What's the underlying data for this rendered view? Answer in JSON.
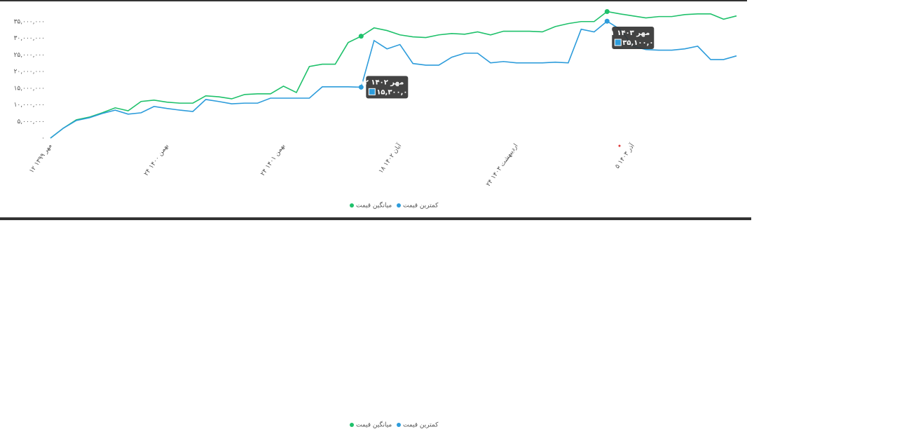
{
  "chart_data": {
    "type": "line",
    "categories": [
      "۱۲ مهر ۱۳۹۹",
      null,
      null,
      null,
      null,
      null,
      null,
      null,
      null,
      "۲۴ بهمن ۱۴۰۰",
      null,
      null,
      null,
      null,
      null,
      null,
      null,
      null,
      "۲۴ بهمن ۱۴۰۱",
      null,
      null,
      null,
      null,
      null,
      null,
      null,
      null,
      "۱۸ آبان ۱۴۰۲",
      null,
      null,
      null,
      null,
      null,
      null,
      null,
      null,
      "۲۴ اردیبهشت ۱۴۰۳",
      null,
      null,
      null,
      null,
      null,
      null,
      null,
      null,
      "۵ آذر ۱۴۰۳",
      null,
      null,
      null,
      null,
      null,
      null,
      null,
      null
    ],
    "ylim": [
      0,
      40000000
    ],
    "yticks": [
      {
        "value": 0,
        "label": "۰"
      },
      {
        "value": 5000000,
        "label": "۵,۰۰۰,۰۰۰"
      },
      {
        "value": 10000000,
        "label": "۱۰,۰۰۰,۰۰۰"
      },
      {
        "value": 15000000,
        "label": "۱۵,۰۰۰,۰۰۰"
      },
      {
        "value": 20000000,
        "label": "۲۰,۰۰۰,۰۰۰"
      },
      {
        "value": 25000000,
        "label": "۲۵,۰۰۰,۰۰۰"
      },
      {
        "value": 30000000,
        "label": "۳۰,۰۰۰,۰۰۰"
      },
      {
        "value": 35000000,
        "label": "۳۵,۰۰۰,۰۰۰"
      }
    ],
    "grid": false,
    "series": [
      {
        "name": "میانگین قیمت",
        "color": "#1fc16b",
        "values": [
          0,
          3000000,
          5500000,
          6300000,
          7600000,
          9100000,
          8200000,
          11000000,
          11400000,
          10800000,
          10500000,
          10500000,
          12700000,
          12400000,
          11800000,
          13100000,
          13300000,
          13300000,
          15600000,
          13700000,
          21500000,
          22200000,
          22200000,
          28700000,
          30600000,
          33100000,
          32300000,
          31000000,
          30400000,
          30200000,
          31000000,
          31400000,
          31200000,
          31900000,
          31000000,
          32100000,
          32100000,
          32100000,
          31900000,
          33500000,
          34400000,
          35000000,
          35000000,
          38000000,
          37300000,
          36700000,
          36100000,
          36500000,
          36500000,
          37100000,
          37300000,
          37300000,
          35700000,
          36700000
        ]
      },
      {
        "name": "کمترین قیمت",
        "color": "#2d9cdb",
        "values": [
          0,
          3000000,
          5300000,
          6100000,
          7400000,
          8400000,
          7200000,
          7600000,
          9500000,
          8900000,
          8400000,
          8000000,
          11600000,
          11000000,
          10300000,
          10500000,
          10500000,
          12000000,
          12000000,
          12000000,
          12000000,
          15400000,
          15400000,
          15400000,
          15300000,
          29300000,
          26800000,
          28100000,
          22400000,
          21900000,
          21900000,
          24300000,
          25500000,
          25500000,
          22600000,
          23000000,
          22600000,
          22600000,
          22600000,
          22800000,
          22600000,
          32700000,
          31900000,
          35100000,
          32700000,
          27600000,
          26600000,
          26400000,
          26400000,
          26800000,
          27600000,
          23600000,
          23600000,
          24700000
        ],
        "tooltips": [
          {
            "title": "۱۲ مهر ۱۴۰۲",
            "label": "۱۵,۳۰۰,۰۰۰",
            "value": 15300000
          },
          {
            "title": "۲۱ مهر ۱۴۰۳",
            "label": "۳۵,۱۰۰,۰۰۰",
            "value": 35100000
          }
        ]
      }
    ]
  }
}
